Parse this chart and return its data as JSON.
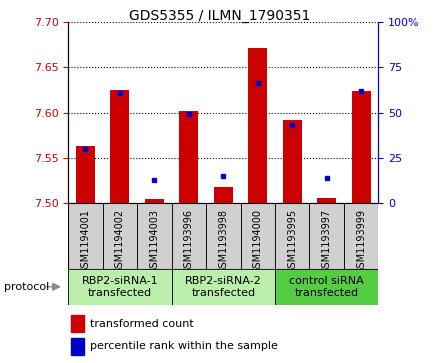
{
  "title": "GDS5355 / ILMN_1790351",
  "samples": [
    "GSM1194001",
    "GSM1194002",
    "GSM1194003",
    "GSM1193996",
    "GSM1193998",
    "GSM1194000",
    "GSM1193995",
    "GSM1193997",
    "GSM1193999"
  ],
  "red_values": [
    7.563,
    7.625,
    7.505,
    7.602,
    7.518,
    7.671,
    7.592,
    7.506,
    7.624
  ],
  "blue_values": [
    30,
    61,
    13,
    49,
    15,
    66,
    43,
    14,
    62
  ],
  "ylim_left": [
    7.5,
    7.7
  ],
  "ylim_right": [
    0,
    100
  ],
  "yticks_left": [
    7.5,
    7.55,
    7.6,
    7.65,
    7.7
  ],
  "yticks_right": [
    0,
    25,
    50,
    75,
    100
  ],
  "groups": [
    {
      "label": "RBP2-siRNA-1\ntransfected",
      "start": 0,
      "end": 3,
      "color": "#bbeeaa"
    },
    {
      "label": "RBP2-siRNA-2\ntransfected",
      "start": 3,
      "end": 6,
      "color": "#bbeeaa"
    },
    {
      "label": "control siRNA\ntransfected",
      "start": 6,
      "end": 9,
      "color": "#55cc44"
    }
  ],
  "bar_color": "#cc0000",
  "dot_color": "#0000cc",
  "bar_width": 0.55,
  "protocol_label": "protocol",
  "bg_color": "#ffffff",
  "sample_box_color": "#d0d0d0",
  "grid_color": "#000000",
  "left_axis_color": "#cc0000",
  "right_axis_color": "#0000cc",
  "title_fontsize": 10,
  "tick_fontsize": 8,
  "sample_fontsize": 7,
  "group_fontsize": 8,
  "legend_fontsize": 8
}
